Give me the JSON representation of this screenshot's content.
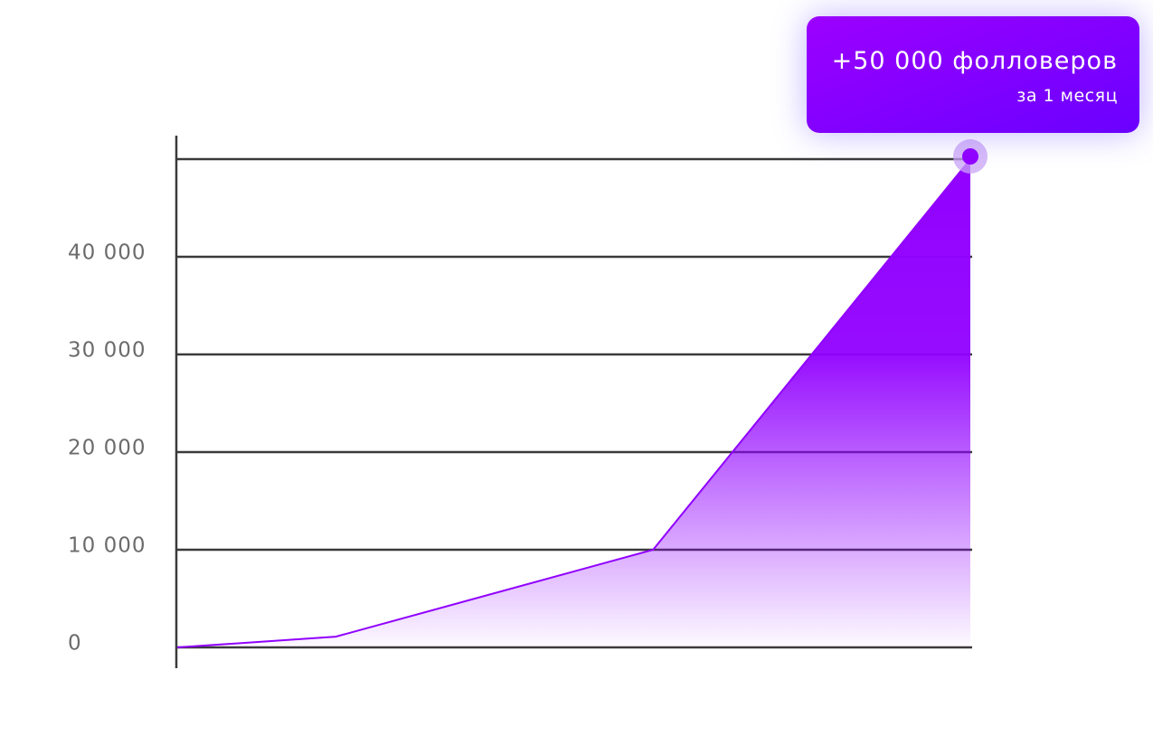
{
  "chart_data": {
    "type": "area",
    "annotation": {
      "title": "+50 000 фолловеров",
      "subtitle": "за 1 месяц"
    },
    "x": [
      0,
      1,
      3,
      5
    ],
    "xlim": [
      0,
      5
    ],
    "values": [
      0,
      1100,
      10000,
      50000
    ],
    "color": "#9100ff",
    "ylim": [
      0,
      50000
    ],
    "yticks": [
      0,
      {
        "value": 10000,
        "label": "10 000"
      },
      {
        "value": 20000,
        "label": "20 000"
      },
      {
        "value": 30000,
        "label": "30 000"
      },
      {
        "value": 40000,
        "label": "40 000"
      }
    ],
    "grid": true
  }
}
